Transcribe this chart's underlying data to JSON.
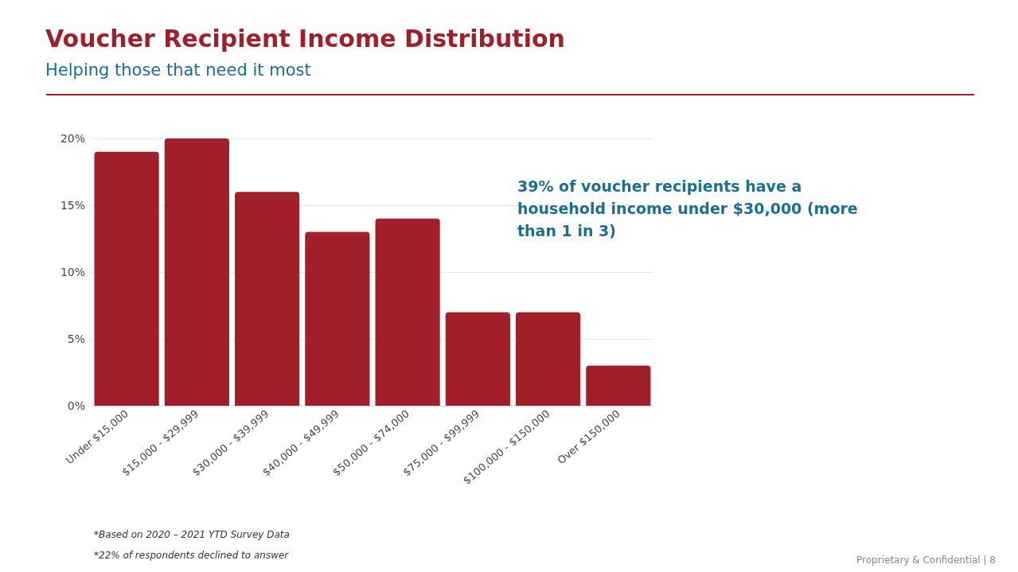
{
  "chart_data": {
    "type": "bar",
    "title": "Voucher Recipient Income Distribution",
    "subtitle": "Helping those that need it most",
    "categories": [
      "Under $15,000",
      "$15,000 - $29,999",
      "$30,000 - $39,999",
      "$40,000 - $49,999",
      "$50,000 - $74,000",
      "$75,000 - $99,999",
      "$100,000 - $150,000",
      "Over $150,000"
    ],
    "values": [
      19,
      20,
      16,
      13,
      14,
      7,
      7,
      3
    ],
    "color": "#a01f29",
    "ylim": [
      0,
      20
    ],
    "yticks": [
      {
        "value": 0,
        "label": "0%"
      },
      {
        "value": 5,
        "label": "5%"
      },
      {
        "value": 10,
        "label": "10%"
      },
      {
        "value": 15,
        "label": "15%"
      },
      {
        "value": 20,
        "label": "20%"
      }
    ],
    "grid": "y",
    "annotations": [
      "39% of voucher recipients have a household income under $30,000 (more than 1 in 3)",
      "*Based on 2020 – 2021 YTD Survey Data",
      "*22% of respondents declined to answer",
      "Proprietary & Confidential | 8"
    ]
  }
}
